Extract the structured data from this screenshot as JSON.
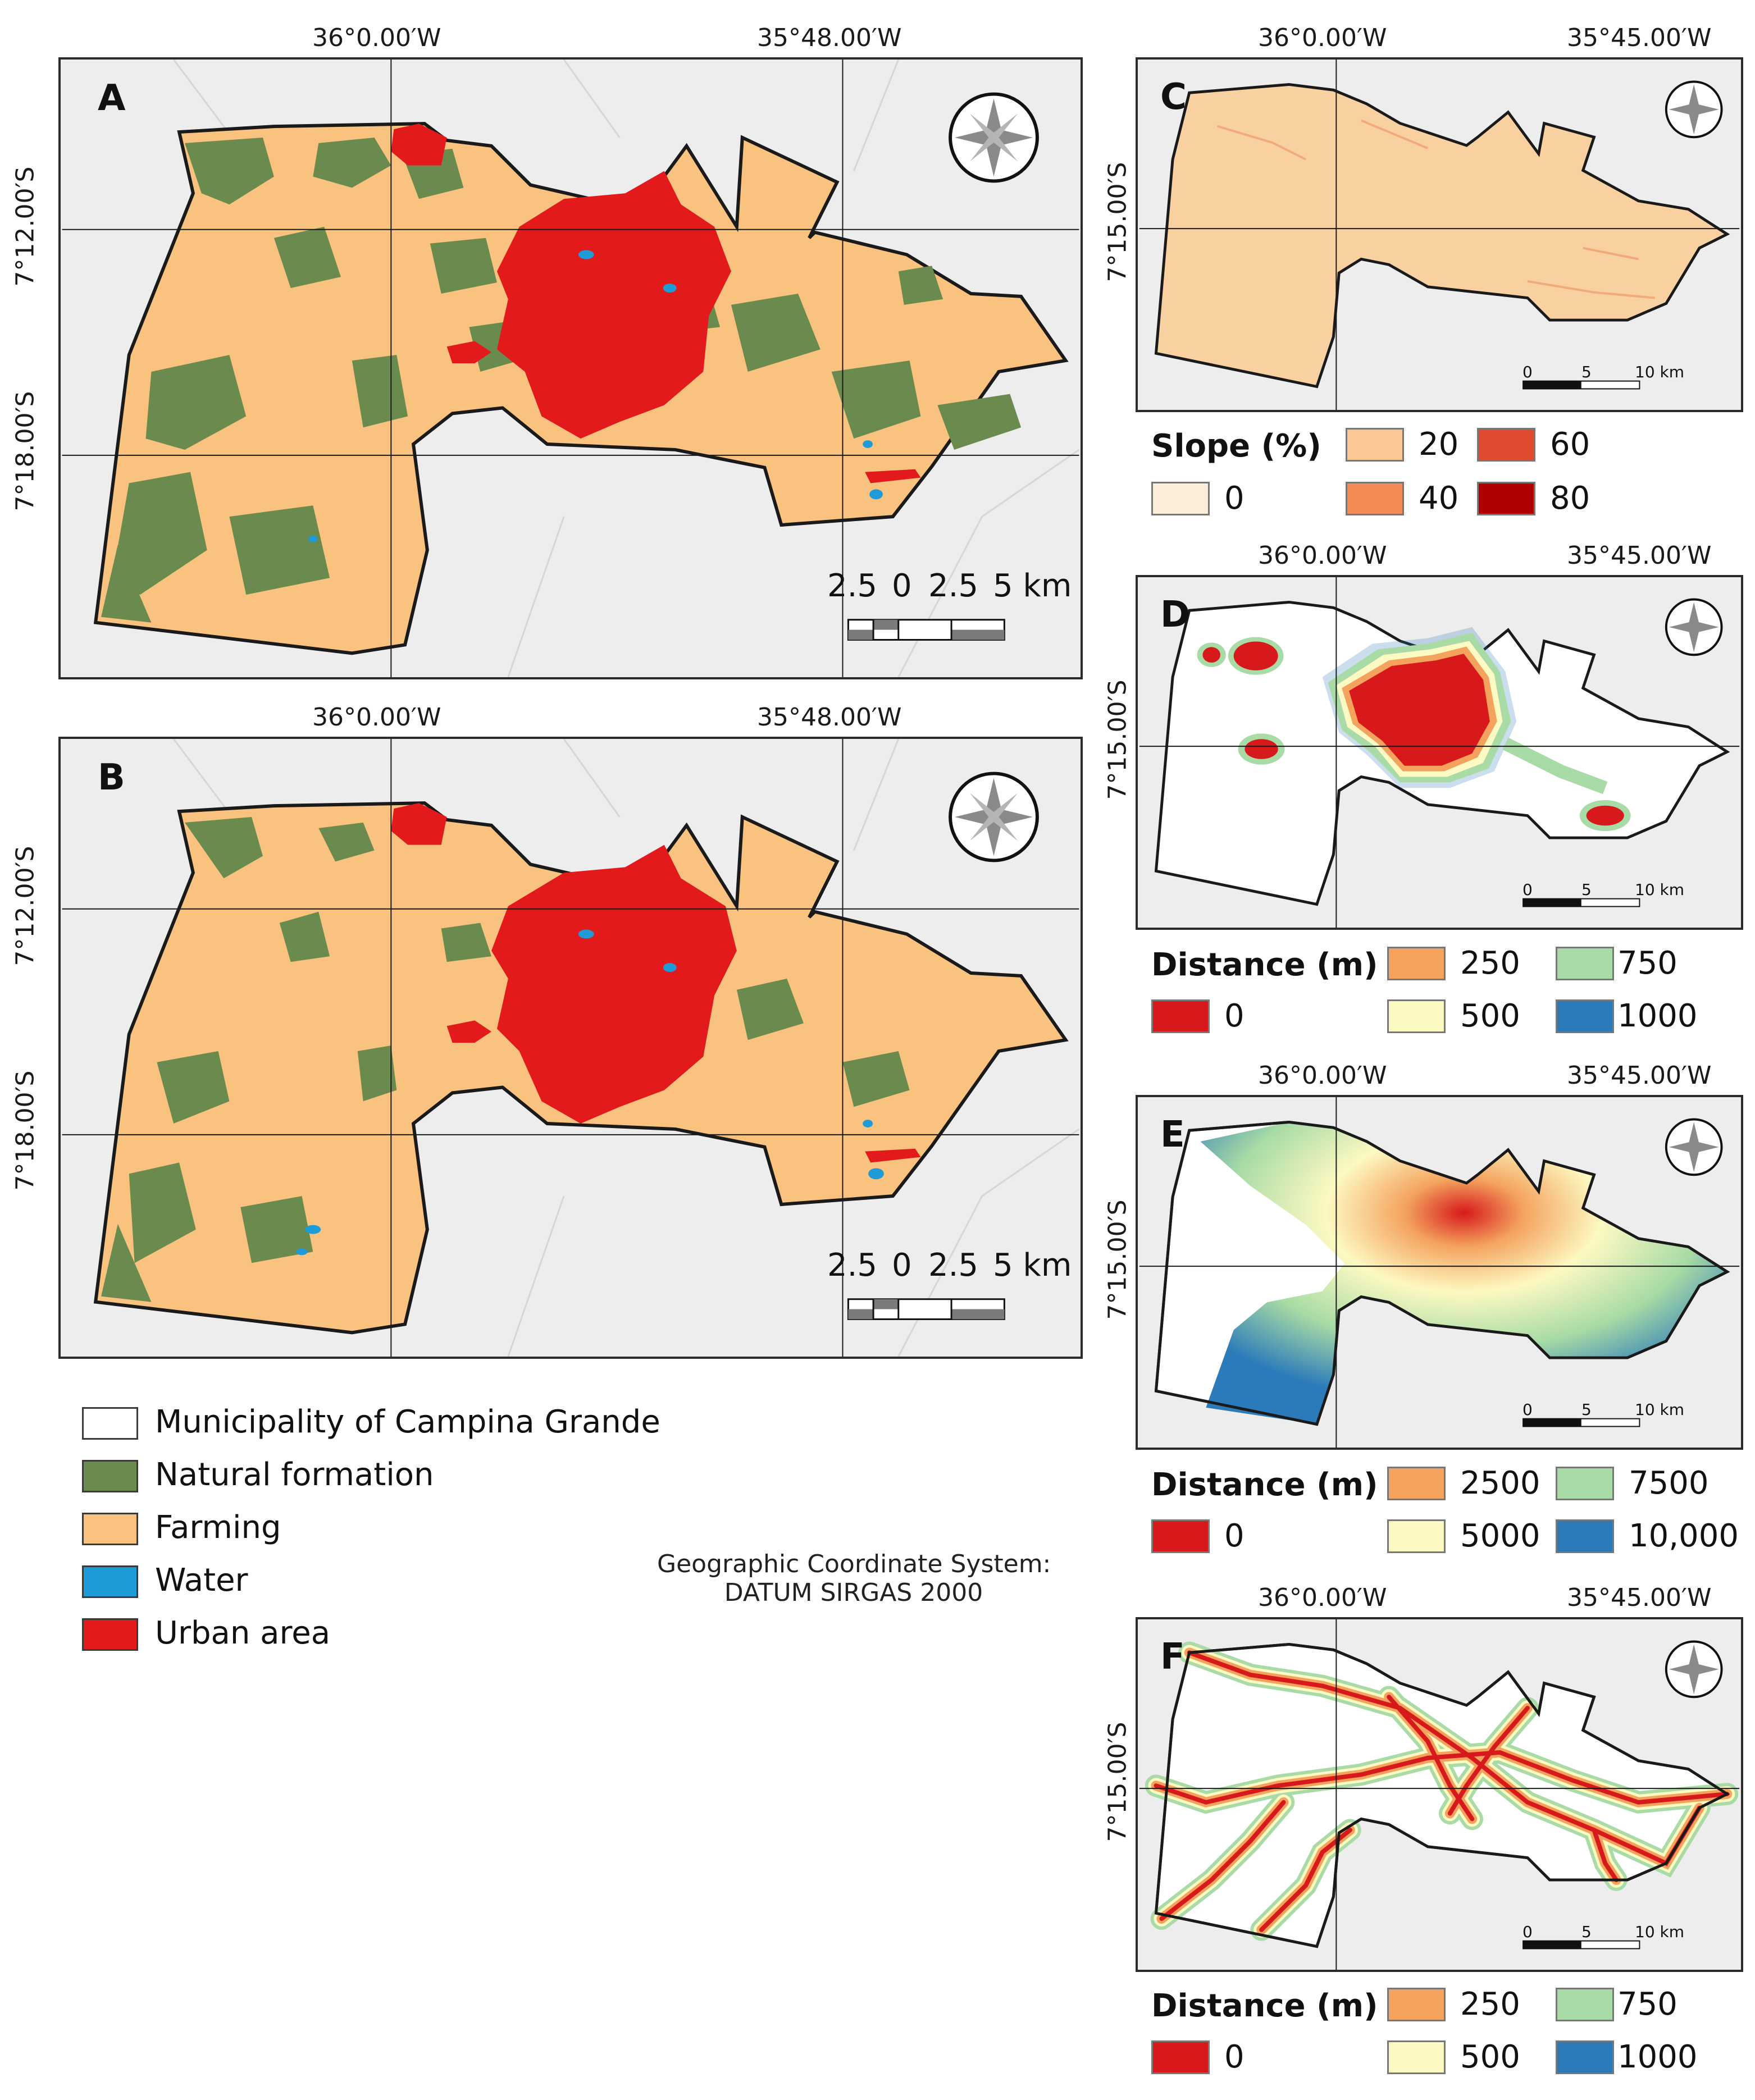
{
  "panels": {
    "A": {
      "letter": "A",
      "lon_labels": [
        "36°0.00′W",
        "35°48.00′W"
      ],
      "lat_labels": [
        "7°12.00′S",
        "7°18.00′S"
      ],
      "scale_labels": [
        "2.5",
        "0",
        "2.5",
        "5 km"
      ]
    },
    "B": {
      "letter": "B",
      "lon_labels": [
        "36°0.00′W",
        "35°48.00′W"
      ],
      "lat_labels": [
        "7°12.00′S",
        "7°18.00′S"
      ],
      "scale_labels": [
        "2.5",
        "0",
        "2.5",
        "5 km"
      ]
    },
    "C": {
      "letter": "C",
      "lon_labels": [
        "36°0.00′W",
        "35°45.00′W"
      ],
      "lat_labels": [
        "7°15.00′S"
      ],
      "scale_labels": [
        "0",
        "5",
        "10 km"
      ]
    },
    "D": {
      "letter": "D",
      "lon_labels": [
        "36°0.00′W",
        "35°45.00′W"
      ],
      "lat_labels": [
        "7°15.00′S"
      ],
      "scale_labels": [
        "0",
        "5",
        "10 km"
      ]
    },
    "E": {
      "letter": "E",
      "lon_labels": [
        "36°0.00′W",
        "35°45.00′W"
      ],
      "lat_labels": [
        "7°15.00′S"
      ],
      "scale_labels": [
        "0",
        "5",
        "10 km"
      ]
    },
    "F": {
      "letter": "F",
      "lon_labels": [
        "36°0.00′W",
        "35°45.00′W"
      ],
      "lat_labels": [
        "7°15.00′S"
      ],
      "scale_labels": [
        "0",
        "5",
        "10 km"
      ]
    }
  },
  "legend_slope": {
    "title": "Slope (%)",
    "items": [
      {
        "label": "0",
        "color": "#fdeedb"
      },
      {
        "label": "20",
        "color": "#f9c896"
      },
      {
        "label": "40",
        "color": "#f48a54"
      },
      {
        "label": "60",
        "color": "#e04a2e"
      },
      {
        "label": "80",
        "color": "#b00000"
      }
    ]
  },
  "legend_distance_D": {
    "title": "Distance (m)",
    "items": [
      {
        "label": "0",
        "color": "#d7191c"
      },
      {
        "label": "250",
        "color": "#f4a35e"
      },
      {
        "label": "500",
        "color": "#fdf9c2"
      },
      {
        "label": "750",
        "color": "#a8dba5"
      },
      {
        "label": "1000",
        "color": "#2b7bba"
      }
    ]
  },
  "legend_distance_E": {
    "title": "Distance (m)",
    "items": [
      {
        "label": "0",
        "color": "#d7191c"
      },
      {
        "label": "2500",
        "color": "#f4a35e"
      },
      {
        "label": "5000",
        "color": "#fdf9c2"
      },
      {
        "label": "7500",
        "color": "#a8dba5"
      },
      {
        "label": "10,000",
        "color": "#2b7bba"
      }
    ]
  },
  "legend_distance_F": {
    "title": "Distance (m)",
    "items": [
      {
        "label": "0",
        "color": "#d7191c"
      },
      {
        "label": "250",
        "color": "#f4a35e"
      },
      {
        "label": "500",
        "color": "#fdf9c2"
      },
      {
        "label": "750",
        "color": "#a8dba5"
      },
      {
        "label": "1000",
        "color": "#2b7bba"
      }
    ]
  },
  "legend_landuse": {
    "items": [
      {
        "label": "Municipality of Campina Grande",
        "color": "#ffffff"
      },
      {
        "label": "Natural formation",
        "color": "#6b8a4e"
      },
      {
        "label": "Farming",
        "color": "#f9c37f"
      },
      {
        "label": "Water",
        "color": "#1f9bd7"
      },
      {
        "label": "Urban area",
        "color": "#e31a1c"
      }
    ]
  },
  "crs": {
    "line1": "Geographic Coordinate System:",
    "line2": "DATUM SIRGAS 2000"
  },
  "icons": {
    "north_arrow": "compass-rose-icon"
  }
}
